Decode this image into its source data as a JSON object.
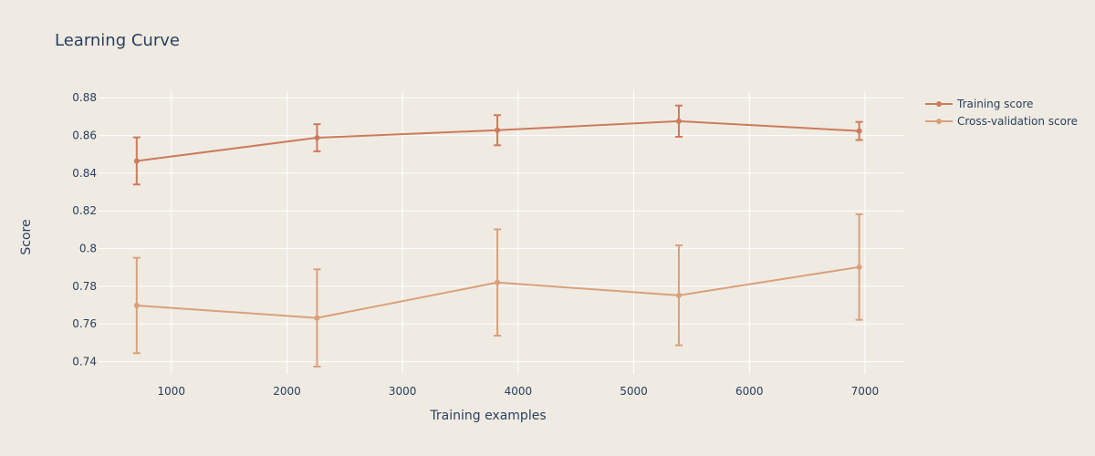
{
  "chart_data": {
    "type": "line",
    "title": "Learning Curve",
    "xlabel": "Training examples",
    "ylabel": "Score",
    "xlim": [
      370,
      7340
    ],
    "ylim": [
      0.7335,
      0.8835
    ],
    "x_ticks": [
      1000,
      2000,
      3000,
      4000,
      5000,
      6000,
      7000
    ],
    "y_ticks": [
      0.74,
      0.76,
      0.78,
      0.8,
      0.82,
      0.84,
      0.86,
      0.88
    ],
    "y_tick_labels": [
      "0.74",
      "0.76",
      "0.78",
      "0.8",
      "0.82",
      "0.84",
      "0.86",
      "0.88"
    ],
    "grid": true,
    "legend_position": "top-right",
    "x": [
      700,
      2260,
      3820,
      5390,
      6950
    ],
    "series": [
      {
        "name": "Training score",
        "color": "#cd7b5c",
        "values": [
          0.8465,
          0.8588,
          0.8628,
          0.8676,
          0.8624
        ],
        "error": [
          0.0125,
          0.0072,
          0.008,
          0.0083,
          0.0048
        ]
      },
      {
        "name": "Cross-validation score",
        "color": "#d9a07c",
        "values": [
          0.7698,
          0.7632,
          0.782,
          0.7752,
          0.7902
        ],
        "error": [
          0.0253,
          0.0258,
          0.0282,
          0.0265,
          0.028
        ]
      }
    ]
  }
}
